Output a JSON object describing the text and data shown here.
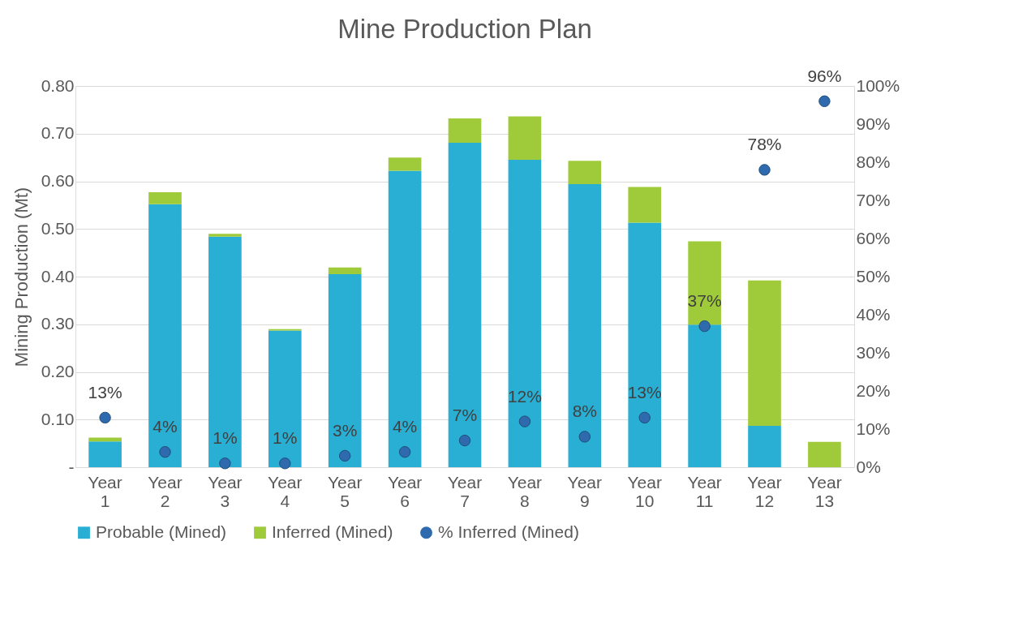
{
  "chart_data": {
    "type": "bar",
    "title": "Mine Production Plan",
    "ylabel": "Mining Production (Mt)",
    "categories": [
      "Year 1",
      "Year 2",
      "Year 3",
      "Year 4",
      "Year 5",
      "Year 6",
      "Year 7",
      "Year 8",
      "Year 9",
      "Year 10",
      "Year 11",
      "Year 12",
      "Year 13"
    ],
    "series": [
      {
        "name": "Probable (Mined)",
        "color": "#29afd4",
        "values": [
          0.054,
          0.552,
          0.484,
          0.287,
          0.405,
          0.622,
          0.681,
          0.645,
          0.594,
          0.513,
          0.299,
          0.087,
          0
        ]
      },
      {
        "name": "Inferred (Mined)",
        "color": "#9fcb3a",
        "values": [
          0.008,
          0.025,
          0.006,
          0.003,
          0.014,
          0.028,
          0.051,
          0.091,
          0.049,
          0.075,
          0.175,
          0.305,
          0.053
        ]
      },
      {
        "name": "% Inferred (Mined)",
        "color": "#2e6aad",
        "type": "scatter",
        "axis": "y2",
        "values": [
          13,
          4,
          1,
          1,
          3,
          4,
          7,
          12,
          8,
          13,
          37,
          78,
          96
        ],
        "value_labels": [
          "13%",
          "4%",
          "1%",
          "1%",
          "3%",
          "4%",
          "7%",
          "12%",
          "8%",
          "13%",
          "37%",
          "78%",
          "96%"
        ]
      }
    ],
    "stacked": true,
    "ylim": [
      0,
      0.8
    ],
    "yticks": [
      {
        "value": 0,
        "label": "-"
      },
      {
        "value": 0.1,
        "label": "0.10"
      },
      {
        "value": 0.2,
        "label": "0.20"
      },
      {
        "value": 0.3,
        "label": "0.30"
      },
      {
        "value": 0.4,
        "label": "0.40"
      },
      {
        "value": 0.5,
        "label": "0.50"
      },
      {
        "value": 0.6,
        "label": "0.60"
      },
      {
        "value": 0.7,
        "label": "0.70"
      },
      {
        "value": 0.8,
        "label": "0.80"
      }
    ],
    "y2lim": [
      0,
      100
    ],
    "y2ticks": [
      {
        "value": 0,
        "label": "0%"
      },
      {
        "value": 10,
        "label": "10%"
      },
      {
        "value": 20,
        "label": "20%"
      },
      {
        "value": 30,
        "label": "30%"
      },
      {
        "value": 40,
        "label": "40%"
      },
      {
        "value": 50,
        "label": "50%"
      },
      {
        "value": 60,
        "label": "60%"
      },
      {
        "value": 70,
        "label": "70%"
      },
      {
        "value": 80,
        "label": "80%"
      },
      {
        "value": 90,
        "label": "90%"
      },
      {
        "value": 100,
        "label": "100%"
      }
    ],
    "grid": "y",
    "legend": "bottom",
    "marker": "circle"
  }
}
